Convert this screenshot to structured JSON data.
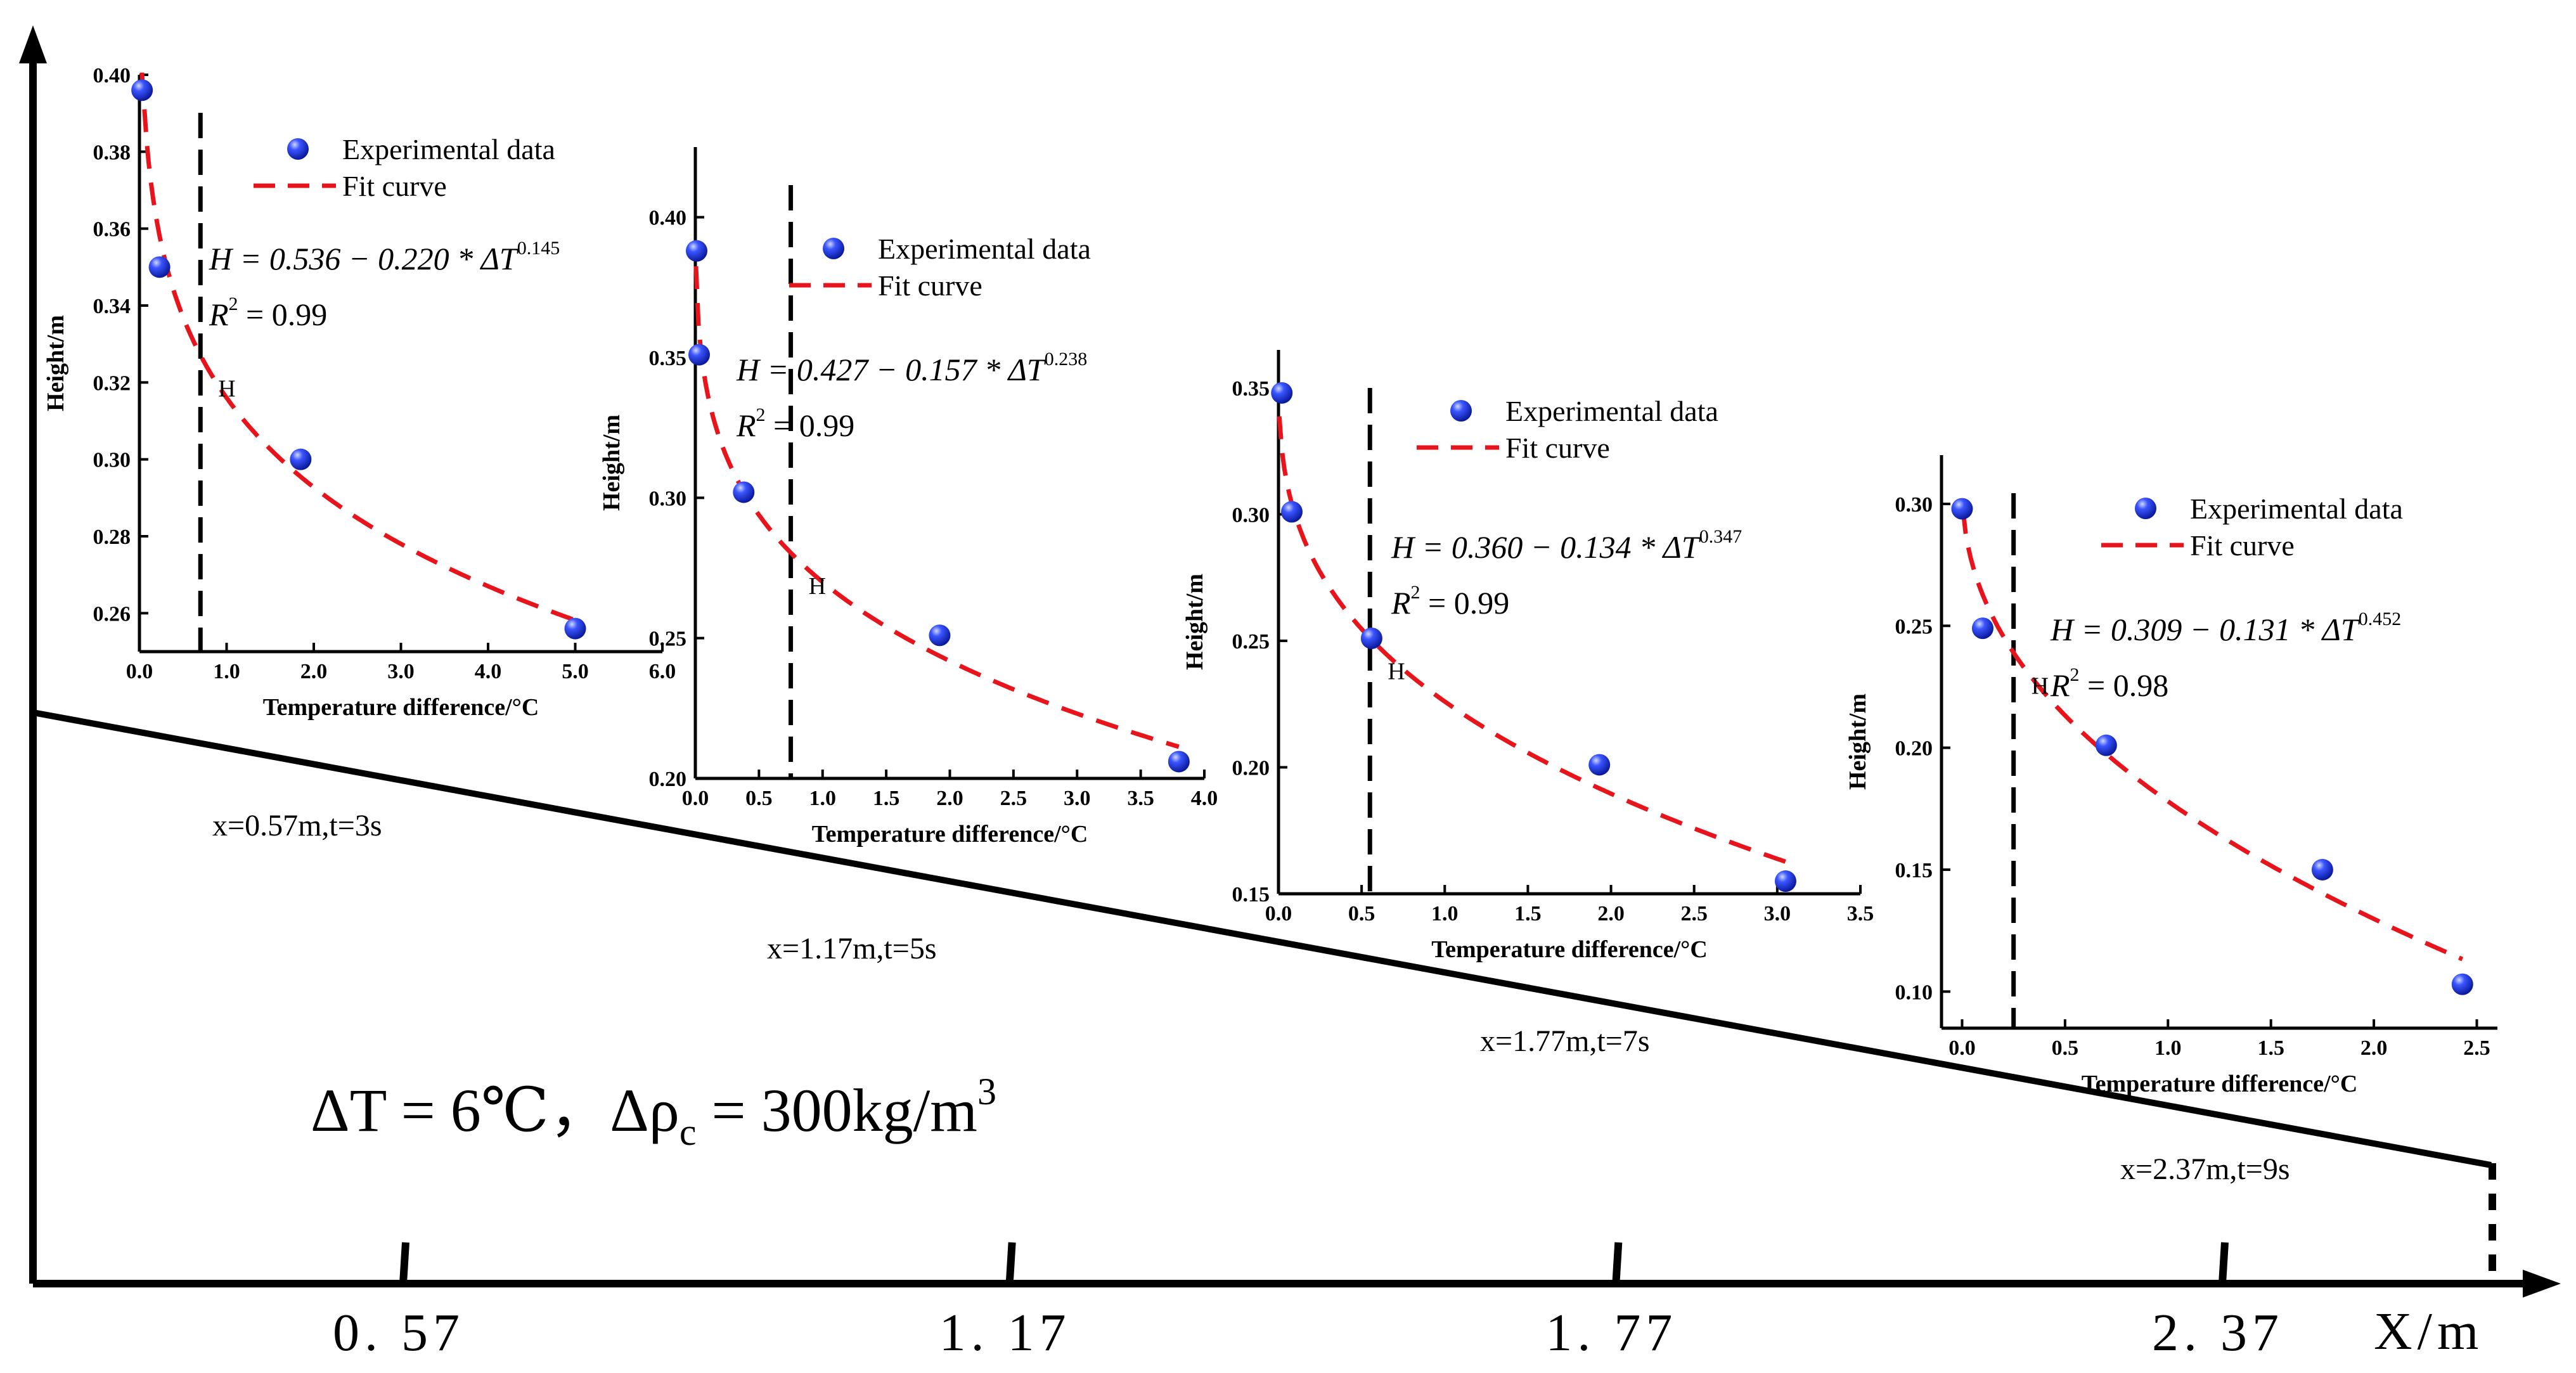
{
  "main": {
    "x_axis_label": "X/m",
    "x_ticks": [
      {
        "label": "0. 57",
        "value": 0.57
      },
      {
        "label": "1. 17",
        "value": 1.17
      },
      {
        "label": "1. 77",
        "value": 1.77
      },
      {
        "label": "2. 37",
        "value": 2.37
      }
    ],
    "annotation": "ΔT = 6℃，Δρc = 300kg/m³",
    "annotation_parts": {
      "lhs1": "ΔT = 6℃，",
      "lhs2": "Δρ",
      "sub": "c",
      "rhs": " = 300kg/m",
      "sup": "3"
    },
    "positions": [
      "x=0.57m,t=3s",
      "x=1.17m,t=5s",
      "x=1.77m,t=7s",
      "x=2.37m,t=9s"
    ]
  },
  "chart_data": [
    {
      "type": "scatter",
      "xlabel": "Temperature difference/°C",
      "ylabel": "Height/m",
      "xlim": [
        0,
        6
      ],
      "ylim": [
        0.25,
        0.4
      ],
      "xticks": [
        "0.0",
        "1.0",
        "2.0",
        "3.0",
        "4.0",
        "5.0",
        "6.0"
      ],
      "yticks": [
        "0.26",
        "0.28",
        "0.30",
        "0.32",
        "0.34",
        "0.36",
        "0.38",
        "0.40"
      ],
      "series": [
        {
          "name": "Experimental data",
          "x": [
            0.03,
            0.23,
            1.85,
            5.0
          ],
          "y": [
            0.396,
            0.35,
            0.3,
            0.256
          ]
        },
        {
          "name": "Fit curve",
          "fit": {
            "a": 0.536,
            "b": 0.22,
            "c": 0.145
          }
        }
      ],
      "equation": {
        "lhs": "H = 0.536 − 0.220 * ΔT",
        "exp": "0.145",
        "r2": "R",
        "r2sup": "2",
        "r2val": " = 0.99"
      },
      "h_marker": {
        "x": 0.7,
        "label": "H"
      },
      "color_points": "#1f3cff",
      "color_fit": "#e8141c"
    },
    {
      "type": "scatter",
      "xlabel": "Temperature difference/°C",
      "ylabel": "Height/m",
      "xlim": [
        0,
        4
      ],
      "ylim": [
        0.2,
        0.425
      ],
      "xticks": [
        "0.0",
        "0.5",
        "1.0",
        "1.5",
        "2.0",
        "2.5",
        "3.0",
        "3.5",
        "4.0"
      ],
      "yticks": [
        "0.20",
        "0.25",
        "0.30",
        "0.35",
        "0.40"
      ],
      "series": [
        {
          "name": "Experimental data",
          "x": [
            0.01,
            0.03,
            0.38,
            1.92,
            3.8
          ],
          "y": [
            0.388,
            0.351,
            0.302,
            0.251,
            0.206
          ]
        },
        {
          "name": "Fit curve",
          "fit": {
            "a": 0.427,
            "b": 0.157,
            "c": 0.238
          }
        }
      ],
      "equation": {
        "lhs": "H = 0.427 − 0.157 * ΔT",
        "exp": "0.238",
        "r2": "R",
        "r2sup": "2",
        "r2val": " = 0.99"
      },
      "h_marker": {
        "x": 0.75,
        "label": "H"
      },
      "color_points": "#1f3cff",
      "color_fit": "#e8141c"
    },
    {
      "type": "scatter",
      "xlabel": "Temperature difference/°C",
      "ylabel": "Height/m",
      "xlim": [
        0,
        3.5
      ],
      "ylim": [
        0.15,
        0.365
      ],
      "xticks": [
        "0.0",
        "0.5",
        "1.0",
        "1.5",
        "2.0",
        "2.5",
        "3.0",
        "3.5"
      ],
      "yticks": [
        "0.15",
        "0.20",
        "0.25",
        "0.30",
        "0.35"
      ],
      "series": [
        {
          "name": "Experimental data",
          "x": [
            0.02,
            0.08,
            0.56,
            1.93,
            3.05
          ],
          "y": [
            0.348,
            0.301,
            0.251,
            0.201,
            0.155
          ]
        },
        {
          "name": "Fit curve",
          "fit": {
            "a": 0.36,
            "b": 0.134,
            "c": 0.347
          }
        }
      ],
      "equation": {
        "lhs": "H = 0.360 − 0.134 * ΔT",
        "exp": "0.347",
        "r2": "R",
        "r2sup": "2",
        "r2val": " = 0.99"
      },
      "h_marker": {
        "x": 0.55,
        "label": "H"
      },
      "color_points": "#1f3cff",
      "color_fit": "#e8141c"
    },
    {
      "type": "scatter",
      "xlabel": "Temperature difference/°C",
      "ylabel": "Height/m",
      "xlim": [
        -0.1,
        2.6
      ],
      "ylim": [
        0.085,
        0.32
      ],
      "xticks": [
        "0.0",
        "0.5",
        "1.0",
        "1.5",
        "2.0",
        "2.5"
      ],
      "yticks": [
        "0.10",
        "0.15",
        "0.20",
        "0.25",
        "0.30"
      ],
      "series": [
        {
          "name": "Experimental data",
          "x": [
            0.0,
            0.1,
            0.7,
            1.75,
            2.43
          ],
          "y": [
            0.298,
            0.249,
            0.201,
            0.15,
            0.103
          ]
        },
        {
          "name": "Fit curve",
          "fit": {
            "a": 0.309,
            "b": 0.131,
            "c": 0.452
          }
        }
      ],
      "equation": {
        "lhs": "H = 0.309 − 0.131 * ΔT",
        "exp": "0.452",
        "r2": "R",
        "r2sup": "2",
        "r2val": " = 0.98"
      },
      "h_marker": {
        "x": 0.25,
        "label": "H"
      },
      "color_points": "#1f3cff",
      "color_fit": "#e8141c"
    }
  ]
}
